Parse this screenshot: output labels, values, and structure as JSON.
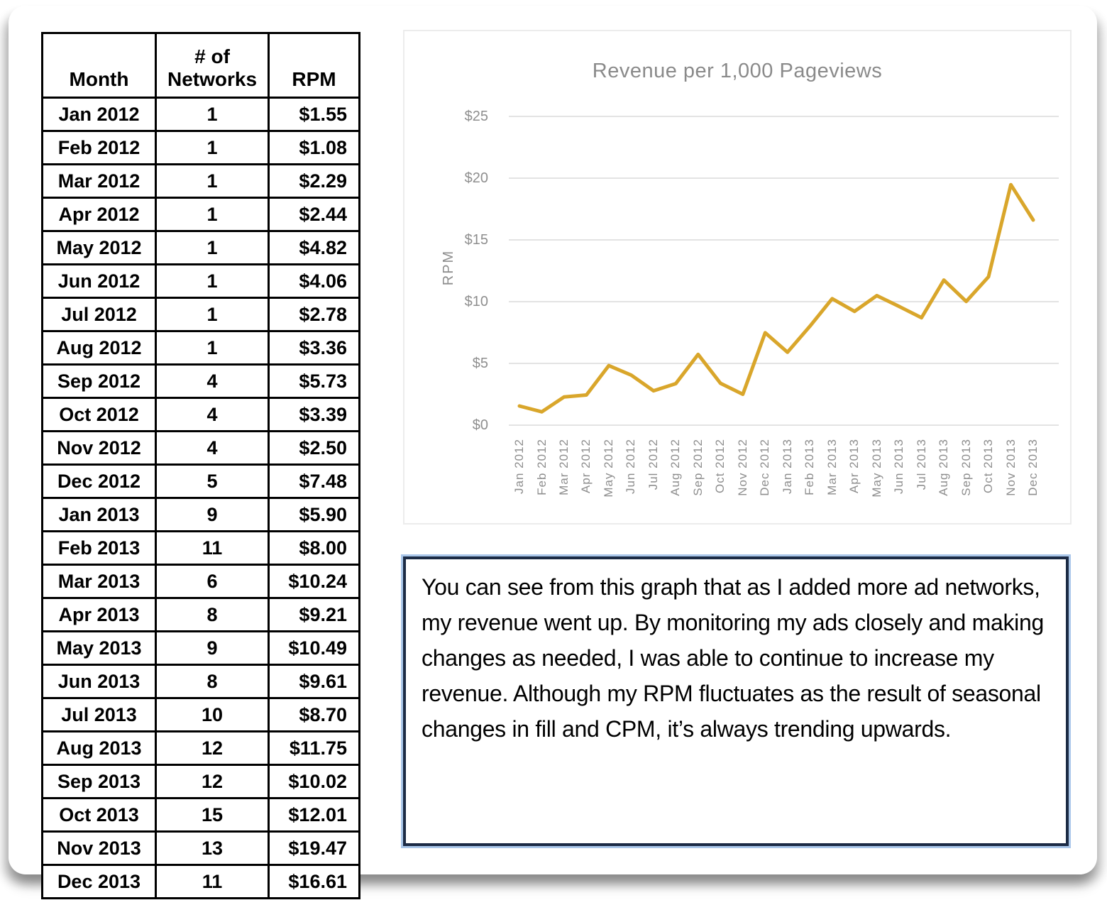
{
  "table": {
    "headers": [
      "Month",
      "# of Networks",
      "RPM"
    ],
    "rows": [
      [
        "Jan 2012",
        "1",
        "$1.55"
      ],
      [
        "Feb 2012",
        "1",
        "$1.08"
      ],
      [
        "Mar 2012",
        "1",
        "$2.29"
      ],
      [
        "Apr 2012",
        "1",
        "$2.44"
      ],
      [
        "May 2012",
        "1",
        "$4.82"
      ],
      [
        "Jun 2012",
        "1",
        "$4.06"
      ],
      [
        "Jul 2012",
        "1",
        "$2.78"
      ],
      [
        "Aug 2012",
        "1",
        "$3.36"
      ],
      [
        "Sep 2012",
        "4",
        "$5.73"
      ],
      [
        "Oct 2012",
        "4",
        "$3.39"
      ],
      [
        "Nov 2012",
        "4",
        "$2.50"
      ],
      [
        "Dec 2012",
        "5",
        "$7.48"
      ],
      [
        "Jan 2013",
        "9",
        "$5.90"
      ],
      [
        "Feb 2013",
        "11",
        "$8.00"
      ],
      [
        "Mar 2013",
        "6",
        "$10.24"
      ],
      [
        "Apr 2013",
        "8",
        "$9.21"
      ],
      [
        "May 2013",
        "9",
        "$10.49"
      ],
      [
        "Jun 2013",
        "8",
        "$9.61"
      ],
      [
        "Jul 2013",
        "10",
        "$8.70"
      ],
      [
        "Aug 2013",
        "12",
        "$11.75"
      ],
      [
        "Sep 2013",
        "12",
        "$10.02"
      ],
      [
        "Oct 2013",
        "15",
        "$12.01"
      ],
      [
        "Nov 2013",
        "13",
        "$19.47"
      ],
      [
        "Dec 2013",
        "11",
        "$16.61"
      ]
    ]
  },
  "chart_data": {
    "type": "line",
    "title": "Revenue per 1,000 Pageviews",
    "xlabel": "",
    "ylabel": "RPM",
    "categories": [
      "Jan 2012",
      "Feb 2012",
      "Mar 2012",
      "Apr 2012",
      "May 2012",
      "Jun 2012",
      "Jul 2012",
      "Aug 2012",
      "Sep 2012",
      "Oct 2012",
      "Nov 2012",
      "Dec 2012",
      "Jan 2013",
      "Feb 2013",
      "Mar 2013",
      "Apr 2013",
      "May 2013",
      "Jun 2013",
      "Jul 2013",
      "Aug 2013",
      "Sep 2013",
      "Oct 2013",
      "Nov 2013",
      "Dec 2013"
    ],
    "values": [
      1.55,
      1.08,
      2.29,
      2.44,
      4.82,
      4.06,
      2.78,
      3.36,
      5.73,
      3.39,
      2.5,
      7.48,
      5.9,
      8.0,
      10.24,
      9.21,
      10.49,
      9.61,
      8.7,
      11.75,
      10.02,
      12.01,
      19.47,
      16.61
    ],
    "ylim": [
      0,
      25
    ],
    "ytick_labels": [
      "$0",
      "$5",
      "$10",
      "$15",
      "$20",
      "$25"
    ],
    "ytick_values": [
      0,
      5,
      10,
      15,
      20,
      25
    ],
    "grid": "horizontal",
    "legend": "none",
    "line_color": "#D9A62B",
    "grid_color": "#E3E3E3",
    "axis_text_color": "#8E8E8E",
    "title_color": "#8A8A8A"
  },
  "note": {
    "text": "You can see from this graph that as I added more ad networks, my revenue went up. By monitoring my ads closely and making changes as needed, I was able to continue to increase my revenue. Although my RPM fluctuates as the result of seasonal changes in fill and CPM, it’s always trending upwards.",
    "border_color": "#1C2B45",
    "outer_border_color": "#AAC7EA"
  }
}
